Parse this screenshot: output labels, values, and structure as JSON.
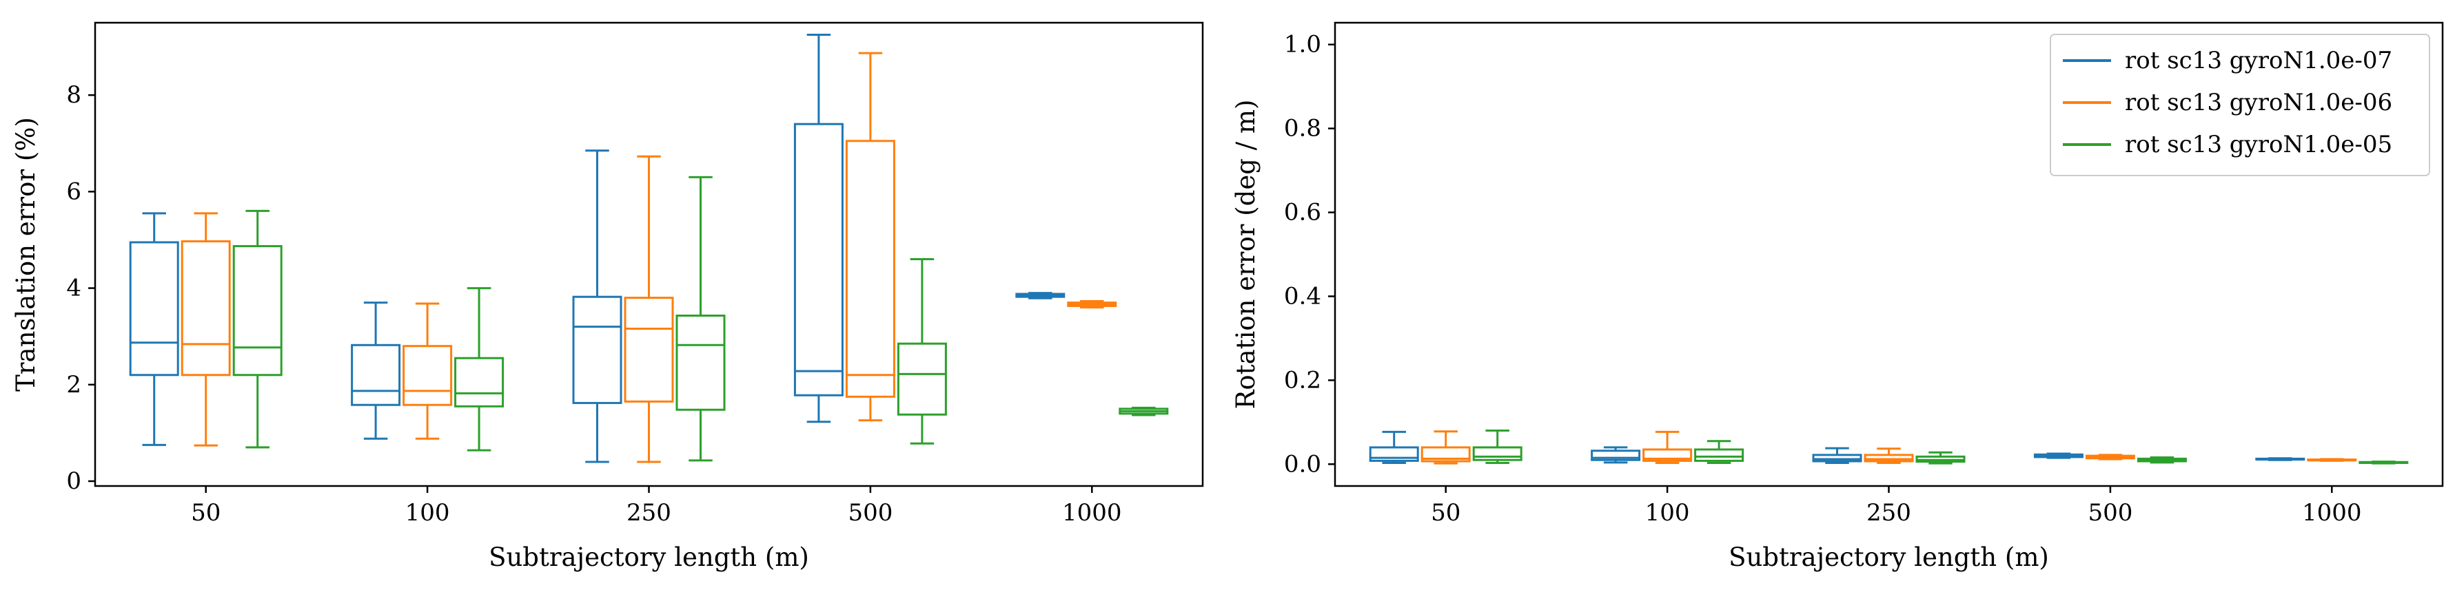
{
  "chart_data": [
    {
      "type": "box",
      "xlabel": "Subtrajectory length (m)",
      "ylabel": "Translation error (%)",
      "categories": [
        "50",
        "100",
        "250",
        "500",
        "1000"
      ],
      "ylim": [
        -0.1,
        9.5
      ],
      "yticks": [
        0,
        2,
        4,
        6,
        8
      ],
      "grid": false,
      "series": [
        {
          "name": "rot sc13 gyroN1.0e-07",
          "color": "#1f77b4",
          "boxes": [
            {
              "whislo": 0.75,
              "q1": 2.2,
              "med": 2.87,
              "q3": 4.95,
              "whishi": 5.55
            },
            {
              "whislo": 0.88,
              "q1": 1.58,
              "med": 1.87,
              "q3": 2.82,
              "whishi": 3.7
            },
            {
              "whislo": 0.4,
              "q1": 1.62,
              "med": 3.2,
              "q3": 3.82,
              "whishi": 6.85
            },
            {
              "whislo": 1.23,
              "q1": 1.78,
              "med": 2.28,
              "q3": 7.4,
              "whishi": 9.25
            },
            {
              "whislo": 3.79,
              "q1": 3.82,
              "med": 3.85,
              "q3": 3.88,
              "whishi": 3.9
            }
          ]
        },
        {
          "name": "rot sc13 gyroN1.0e-06",
          "color": "#ff7f0e",
          "boxes": [
            {
              "whislo": 0.74,
              "q1": 2.2,
              "med": 2.84,
              "q3": 4.97,
              "whishi": 5.55
            },
            {
              "whislo": 0.88,
              "q1": 1.58,
              "med": 1.87,
              "q3": 2.8,
              "whishi": 3.68
            },
            {
              "whislo": 0.4,
              "q1": 1.65,
              "med": 3.16,
              "q3": 3.8,
              "whishi": 6.73
            },
            {
              "whislo": 1.26,
              "q1": 1.75,
              "med": 2.2,
              "q3": 7.05,
              "whishi": 8.87
            },
            {
              "whislo": 3.6,
              "q1": 3.63,
              "med": 3.67,
              "q3": 3.7,
              "whishi": 3.73
            }
          ]
        },
        {
          "name": "rot sc13 gyroN1.0e-05",
          "color": "#2ca02c",
          "boxes": [
            {
              "whislo": 0.7,
              "q1": 2.2,
              "med": 2.77,
              "q3": 4.87,
              "whishi": 5.6
            },
            {
              "whislo": 0.64,
              "q1": 1.55,
              "med": 1.82,
              "q3": 2.55,
              "whishi": 4.0
            },
            {
              "whislo": 0.43,
              "q1": 1.48,
              "med": 2.82,
              "q3": 3.43,
              "whishi": 6.3
            },
            {
              "whislo": 0.78,
              "q1": 1.38,
              "med": 2.22,
              "q3": 2.85,
              "whishi": 4.6
            },
            {
              "whislo": 1.37,
              "q1": 1.4,
              "med": 1.45,
              "q3": 1.5,
              "whishi": 1.52
            }
          ]
        }
      ]
    },
    {
      "type": "box",
      "xlabel": "Subtrajectory length (m)",
      "ylabel": "Rotation error (deg / m)",
      "categories": [
        "50",
        "100",
        "250",
        "500",
        "1000"
      ],
      "ylim": [
        -0.052,
        1.052
      ],
      "yticks": [
        0.0,
        0.2,
        0.4,
        0.6,
        0.8,
        1.0
      ],
      "yticklabels": [
        "0.0",
        "0.2",
        "0.4",
        "0.6",
        "0.8",
        "1.0"
      ],
      "grid": false,
      "legend_position": "top-right",
      "series": [
        {
          "name": "rot sc13 gyroN1.0e-07",
          "color": "#1f77b4",
          "boxes": [
            {
              "whislo": 0.003,
              "q1": 0.008,
              "med": 0.015,
              "q3": 0.04,
              "whishi": 0.077
            },
            {
              "whislo": 0.004,
              "q1": 0.01,
              "med": 0.015,
              "q3": 0.032,
              "whishi": 0.04
            },
            {
              "whislo": 0.003,
              "q1": 0.007,
              "med": 0.012,
              "q3": 0.022,
              "whishi": 0.038
            },
            {
              "whislo": 0.015,
              "q1": 0.017,
              "med": 0.02,
              "q3": 0.023,
              "whishi": 0.025
            },
            {
              "whislo": 0.01,
              "q1": 0.011,
              "med": 0.012,
              "q3": 0.013,
              "whishi": 0.014
            }
          ]
        },
        {
          "name": "rot sc13 gyroN1.0e-06",
          "color": "#ff7f0e",
          "boxes": [
            {
              "whislo": 0.002,
              "q1": 0.007,
              "med": 0.013,
              "q3": 0.04,
              "whishi": 0.078
            },
            {
              "whislo": 0.003,
              "q1": 0.008,
              "med": 0.013,
              "q3": 0.035,
              "whishi": 0.077
            },
            {
              "whislo": 0.003,
              "q1": 0.007,
              "med": 0.012,
              "q3": 0.022,
              "whishi": 0.037
            },
            {
              "whislo": 0.012,
              "q1": 0.014,
              "med": 0.017,
              "q3": 0.02,
              "whishi": 0.022
            },
            {
              "whislo": 0.008,
              "q1": 0.009,
              "med": 0.01,
              "q3": 0.011,
              "whishi": 0.012
            }
          ]
        },
        {
          "name": "rot sc13 gyroN1.0e-05",
          "color": "#2ca02c",
          "boxes": [
            {
              "whislo": 0.003,
              "q1": 0.01,
              "med": 0.018,
              "q3": 0.04,
              "whishi": 0.08
            },
            {
              "whislo": 0.003,
              "q1": 0.008,
              "med": 0.018,
              "q3": 0.035,
              "whishi": 0.055
            },
            {
              "whislo": 0.002,
              "q1": 0.006,
              "med": 0.01,
              "q3": 0.018,
              "whishi": 0.028
            },
            {
              "whislo": 0.004,
              "q1": 0.007,
              "med": 0.01,
              "q3": 0.013,
              "whishi": 0.016
            },
            {
              "whislo": 0.002,
              "q1": 0.003,
              "med": 0.004,
              "q3": 0.005,
              "whishi": 0.006
            }
          ]
        }
      ]
    }
  ]
}
